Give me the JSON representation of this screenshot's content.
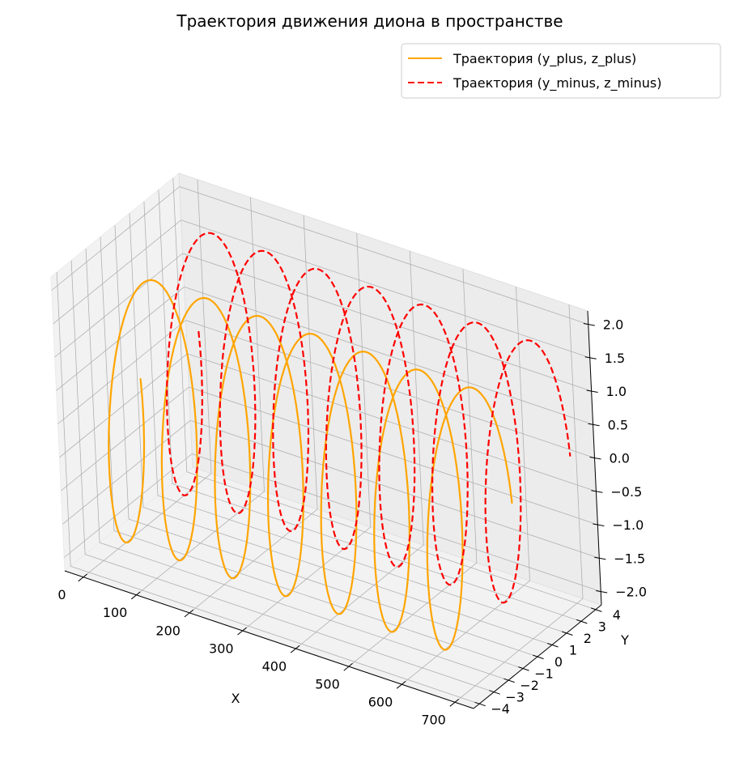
{
  "chart_data": {
    "type": "line",
    "projection": "3d",
    "title": "Траектория движения диона в пространстве",
    "xlabel": "X",
    "ylabel": "Y",
    "zlabel": "",
    "xlim": [
      -35,
      735
    ],
    "ylim": [
      -4.4,
      4.4
    ],
    "zlim": [
      -2.2,
      2.2
    ],
    "xticks": [
      0,
      100,
      200,
      300,
      400,
      500,
      600,
      700
    ],
    "yticks": [
      -4,
      -3,
      -2,
      -1,
      0,
      1,
      2,
      3,
      4
    ],
    "zticks": [
      -2.0,
      -1.5,
      -1.0,
      -0.5,
      0.0,
      0.5,
      1.0,
      1.5,
      2.0
    ],
    "xtick_labels": [
      "0",
      "100",
      "200",
      "300",
      "400",
      "500",
      "600",
      "700"
    ],
    "ytick_labels": [
      "−4",
      "−3",
      "−2",
      "−1",
      "0",
      "1",
      "2",
      "3",
      "4"
    ],
    "ztick_labels": [
      "−2.0",
      "−1.5",
      "−1.0",
      "−0.5",
      "0.0",
      "0.5",
      "1.0",
      "1.5",
      "2.0"
    ],
    "grid": true,
    "legend_position": "top-right",
    "series": [
      {
        "name": "Траектория (y_plus, z_plus)",
        "color": "#FFA500",
        "style": "solid",
        "x_range": [
          0,
          700
        ],
        "turns": 7,
        "y_center": -2,
        "y_amplitude": 2,
        "z_amplitude": 2,
        "start_phase_deg": 90,
        "end_phase_deg": 90
      },
      {
        "name": "Траектория (y_minus, z_minus)",
        "color": "#FF0000",
        "style": "dashed",
        "x_range": [
          0,
          700
        ],
        "turns": 7,
        "y_center": 2,
        "y_amplitude": 2,
        "z_amplitude": 2,
        "start_phase_deg": 90,
        "end_phase_deg": 90
      }
    ]
  }
}
